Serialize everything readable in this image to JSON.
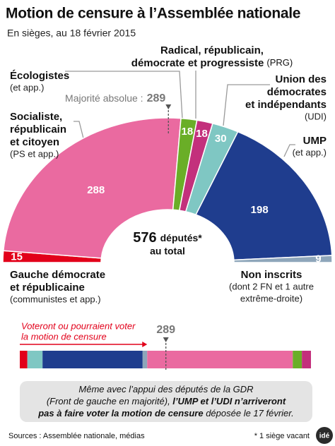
{
  "chart_data": {
    "type": "hemicycle",
    "title": "Motion de censure à l’Assemblée nationale",
    "subtitle": "En sièges, au 18 février 2015",
    "series": [
      {
        "name": [
          "Gauche démocrate",
          "et républicaine"
        ],
        "note": [
          "(communistes et app.)"
        ],
        "color": "#e2001a",
        "value": 15
      },
      {
        "name": [
          "Socialiste,",
          "républicain",
          "et citoyen"
        ],
        "note": [
          "(PS et app.)"
        ],
        "color": "#ea6aa0",
        "value": 288
      },
      {
        "name": [
          "Écologistes"
        ],
        "note": [
          "(et app.)"
        ],
        "color": "#6aae27",
        "value": 18
      },
      {
        "name": [
          "Radical, républicain,",
          "démocrate et progressiste"
        ],
        "note": [
          "(PRG)"
        ],
        "color": "#c3307c",
        "value": 18
      },
      {
        "name": [
          "Union des",
          "démocrates",
          "et indépendants"
        ],
        "note": [
          "(UDI)"
        ],
        "color": "#7fc7c3",
        "value": 30
      },
      {
        "name": [
          "UMP"
        ],
        "note": [
          "(et app.)"
        ],
        "color": "#1f3d8e",
        "value": 198
      },
      {
        "name": [
          "Non inscrits"
        ],
        "note": [
          "(dont 2 FN et 1 autre",
          "extrême-droite)"
        ],
        "color": "#8ea6ba",
        "value": 9
      }
    ],
    "majority": {
      "label": "Majorité absolue :",
      "value": 289
    },
    "total": {
      "value": 576,
      "label": "députés*",
      "sub": "au total"
    },
    "bar_caption": [
      "Voteront ou pourraient voter",
      "la motion de censure"
    ],
    "note": [
      [
        {
          "text": "Même avec l’appui des députés de la GDR",
          "bold": false
        }
      ],
      [
        {
          "text": "(Front de gauche en majorité), ",
          "bold": false
        },
        {
          "text": "l’UMP et l’UDI n’arriveront",
          "bold": true
        }
      ],
      [
        {
          "text": "pas à faire voter la motion de censure",
          "bold": true
        },
        {
          "text": " déposée le 17 février.",
          "bold": false
        }
      ]
    ],
    "source": "Sources : Assemblée nationale, médias",
    "footnote": "* 1 siège vacant",
    "logo": "idé"
  }
}
